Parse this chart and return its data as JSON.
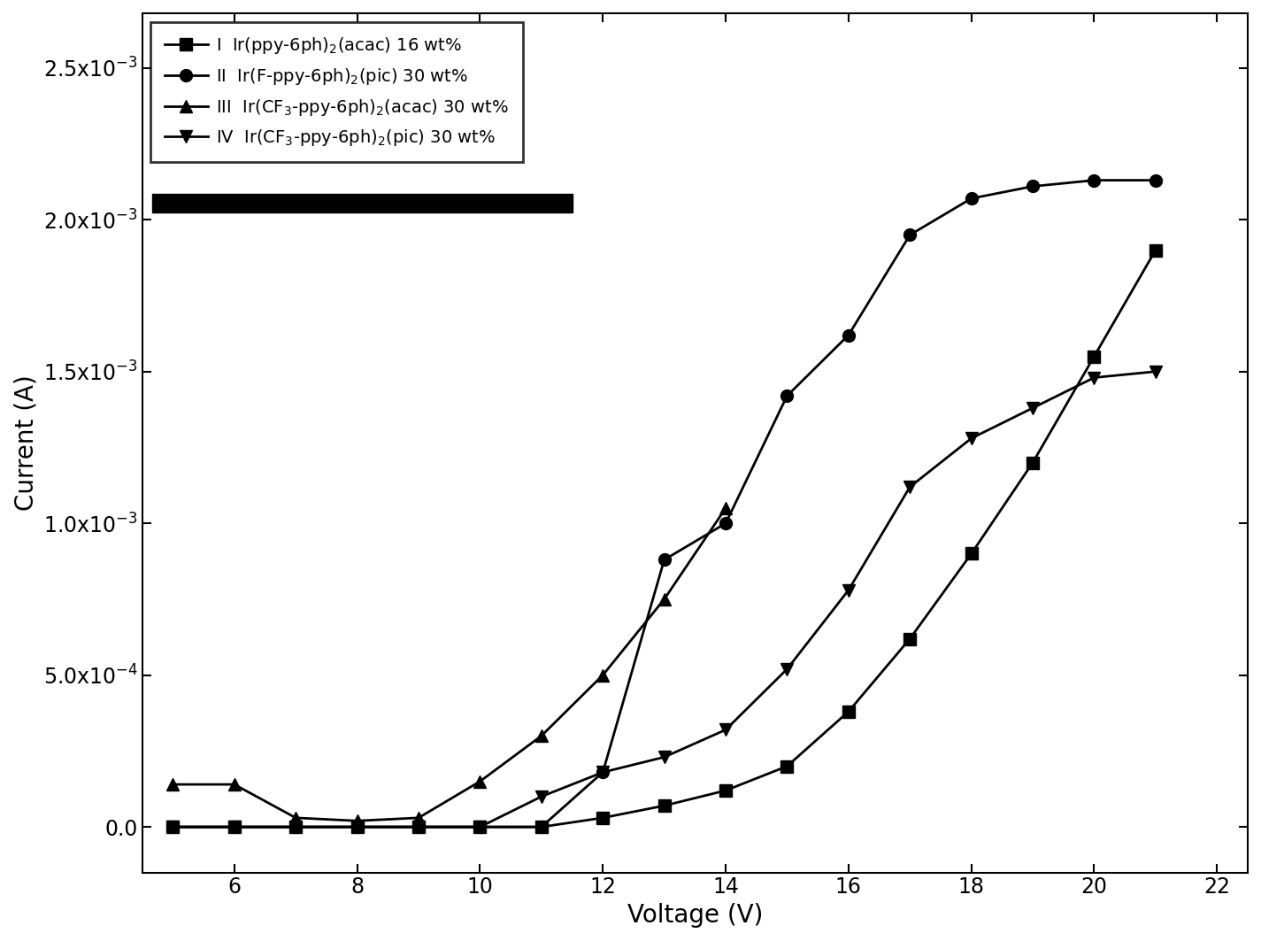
{
  "series": [
    {
      "label": "I  Ir(ppy-6ph)$_2$(acac) 16 wt%",
      "marker": "s",
      "x": [
        5,
        6,
        7,
        8,
        9,
        10,
        11,
        12,
        13,
        14,
        15,
        16,
        17,
        18,
        19,
        20,
        21
      ],
      "y": [
        0.0,
        0.0,
        0.0,
        0.0,
        0.0,
        0.0,
        0.0,
        3e-05,
        7e-05,
        0.00012,
        0.0002,
        0.00038,
        0.00062,
        0.0009,
        0.0012,
        0.00155,
        0.0019
      ]
    },
    {
      "label": "II  Ir(F-ppy-6ph)$_2$(pic) 30 wt%",
      "marker": "o",
      "x": [
        5,
        6,
        7,
        8,
        9,
        10,
        11,
        12,
        13,
        14,
        15,
        16,
        17,
        18,
        19,
        20,
        21
      ],
      "y": [
        0.0,
        0.0,
        0.0,
        0.0,
        0.0,
        0.0,
        0.0,
        0.00018,
        0.00088,
        0.001,
        0.00142,
        0.00162,
        0.00195,
        0.00207,
        0.00211,
        0.00213,
        0.00213
      ]
    },
    {
      "label": "III  Ir(CF$_3$-ppy-6ph)$_2$(acac) 30 wt%",
      "marker": "^",
      "x": [
        5,
        6,
        7,
        8,
        9,
        10,
        11,
        12,
        13,
        14
      ],
      "y": [
        0.00014,
        0.00014,
        3e-05,
        2e-05,
        3e-05,
        0.00015,
        0.0003,
        0.0005,
        0.00075,
        0.00105
      ]
    },
    {
      "label": "IV  Ir(CF$_3$-ppy-6ph)$_2$(pic) 30 wt%",
      "marker": "v",
      "x": [
        5,
        6,
        7,
        8,
        9,
        10,
        11,
        12,
        13,
        14,
        15,
        16,
        17,
        18,
        19,
        20,
        21
      ],
      "y": [
        0.0,
        0.0,
        0.0,
        0.0,
        0.0,
        0.0,
        0.0001,
        0.00018,
        0.00023,
        0.00032,
        0.00052,
        0.00078,
        0.00112,
        0.00128,
        0.00138,
        0.00148,
        0.0015
      ]
    }
  ],
  "xlabel": "Voltage (V)",
  "ylabel": "Current (A)",
  "xlim": [
    4.5,
    22.5
  ],
  "ylim": [
    -0.00015,
    0.00268
  ],
  "xticks": [
    6,
    8,
    10,
    12,
    14,
    16,
    18,
    20,
    22
  ],
  "yticks": [
    0.0,
    0.0005,
    0.001,
    0.0015,
    0.002,
    0.0025
  ],
  "line_color": "black",
  "marker_size": 10,
  "linewidth": 2.0,
  "legend_fontsize": 14,
  "axis_fontsize": 20,
  "tick_fontsize": 17
}
